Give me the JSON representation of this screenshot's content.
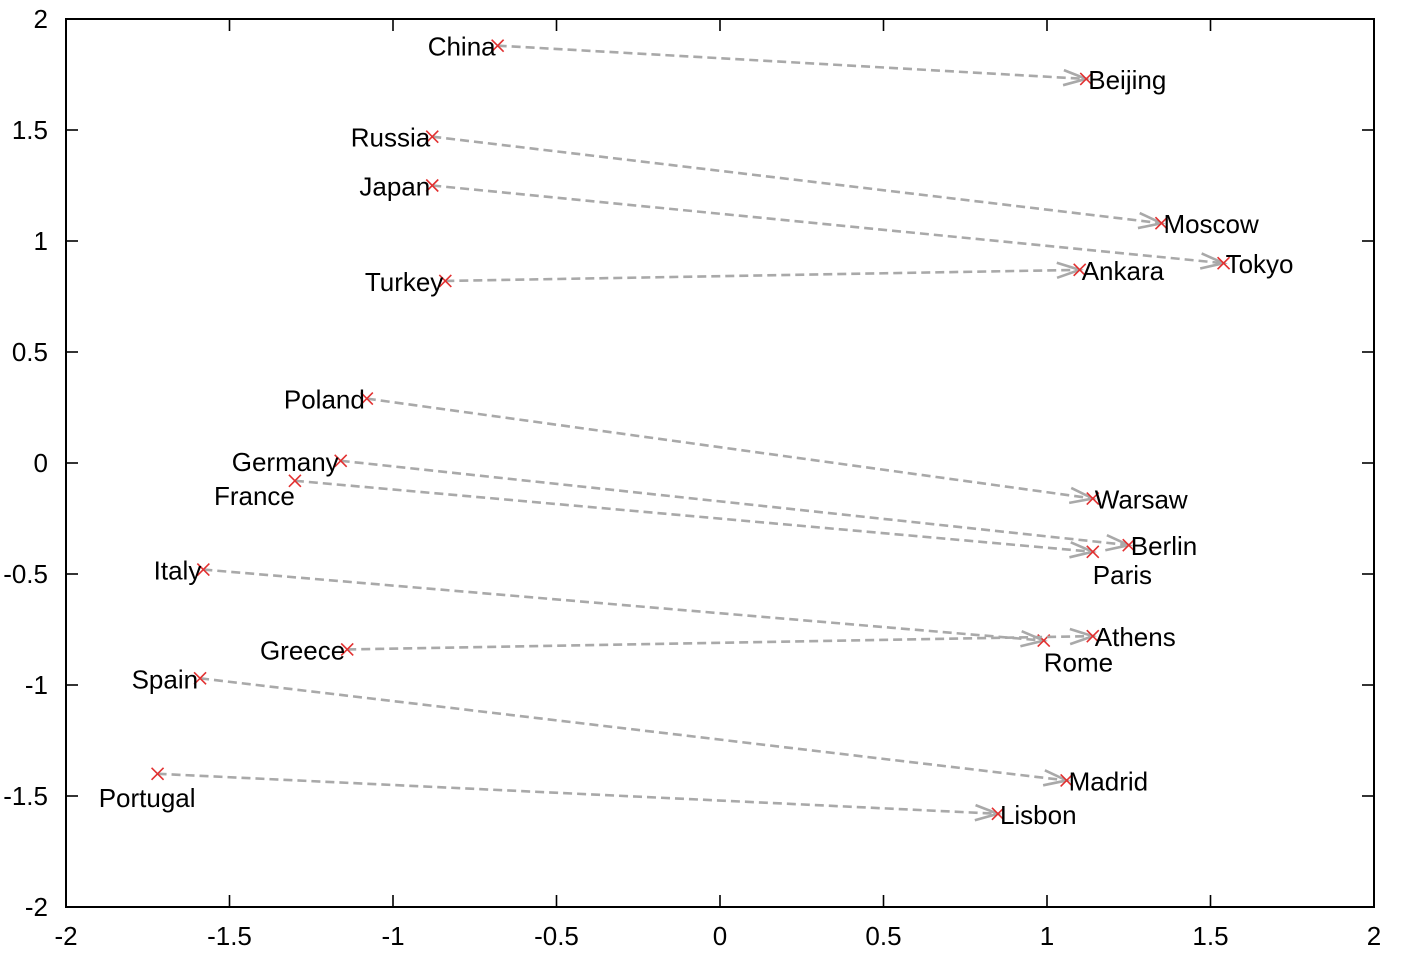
{
  "chart_data": {
    "type": "scatter",
    "title": "",
    "xlabel": "",
    "ylabel": "",
    "xlim": [
      -2,
      2
    ],
    "ylim": [
      -2,
      2
    ],
    "xticks": [
      -2,
      -1.5,
      -1,
      -0.5,
      0,
      0.5,
      1,
      1.5,
      2
    ],
    "yticks": [
      -2,
      -1.5,
      -1,
      -0.5,
      0,
      0.5,
      1,
      1.5,
      2
    ],
    "grid": false,
    "marker_color": "#e23030",
    "arrow_color": "#a9a9a9",
    "pairs": [
      {
        "country": "China",
        "country_xy": [
          -0.68,
          1.88
        ],
        "capital": "Beijing",
        "capital_xy": [
          1.12,
          1.73
        ]
      },
      {
        "country": "Russia",
        "country_xy": [
          -0.88,
          1.47
        ],
        "capital": "Moscow",
        "capital_xy": [
          1.35,
          1.08
        ]
      },
      {
        "country": "Japan",
        "country_xy": [
          -0.88,
          1.25
        ],
        "capital": "Tokyo",
        "capital_xy": [
          1.54,
          0.9
        ]
      },
      {
        "country": "Turkey",
        "country_xy": [
          -0.84,
          0.82
        ],
        "capital": "Ankara",
        "capital_xy": [
          1.1,
          0.87
        ]
      },
      {
        "country": "Poland",
        "country_xy": [
          -1.08,
          0.29
        ],
        "capital": "Warsaw",
        "capital_xy": [
          1.14,
          -0.16
        ]
      },
      {
        "country": "Germany",
        "country_xy": [
          -1.16,
          0.01
        ],
        "capital": "Berlin",
        "capital_xy": [
          1.25,
          -0.37
        ]
      },
      {
        "country": "France",
        "country_xy": [
          -1.3,
          -0.08
        ],
        "capital": "Paris",
        "capital_xy": [
          1.14,
          -0.4
        ]
      },
      {
        "country": "Italy",
        "country_xy": [
          -1.58,
          -0.48
        ],
        "capital": "Rome",
        "capital_xy": [
          0.99,
          -0.8
        ]
      },
      {
        "country": "Greece",
        "country_xy": [
          -1.14,
          -0.84
        ],
        "capital": "Athens",
        "capital_xy": [
          1.14,
          -0.78
        ]
      },
      {
        "country": "Spain",
        "country_xy": [
          -1.59,
          -0.97
        ],
        "capital": "Madrid",
        "capital_xy": [
          1.06,
          -1.43
        ]
      },
      {
        "country": "Portugal",
        "country_xy": [
          -1.72,
          -1.4
        ],
        "capital": "Lisbon",
        "capital_xy": [
          0.85,
          -1.58
        ]
      }
    ]
  }
}
